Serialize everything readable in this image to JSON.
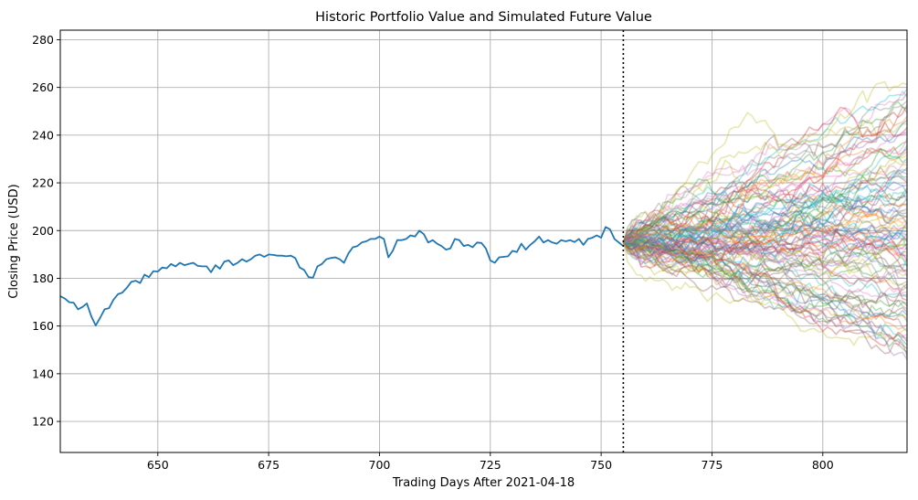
{
  "chart_data": {
    "type": "line",
    "title": "Historic Portfolio Value and Simulated Future Value",
    "xlabel": "Trading Days After 2021-04-18",
    "ylabel": "Closing Price (USD)",
    "xlim": [
      628,
      819
    ],
    "ylim": [
      107,
      284
    ],
    "xticks": [
      650,
      675,
      700,
      725,
      750,
      775,
      800
    ],
    "yticks": [
      120,
      140,
      160,
      180,
      200,
      220,
      240,
      260,
      280
    ],
    "grid": true,
    "divider_x": 755,
    "historic": {
      "color": "#1f77b4",
      "x_start": 628,
      "values": [
        172.5,
        171.5,
        170.0,
        169.8,
        167.0,
        168.0,
        169.5,
        164.0,
        160.2,
        163.5,
        167.0,
        167.5,
        171.0,
        173.3,
        174.0,
        176.0,
        178.5,
        179.0,
        178.0,
        181.5,
        180.5,
        183.0,
        182.8,
        184.5,
        184.2,
        186.0,
        185.0,
        186.5,
        185.5,
        186.0,
        186.5,
        185.2,
        185.0,
        185.0,
        182.5,
        185.5,
        184.0,
        187.0,
        187.5,
        185.5,
        186.5,
        188.0,
        187.0,
        188.0,
        189.5,
        190.0,
        189.0,
        190.0,
        189.8,
        189.5,
        189.5,
        189.2,
        189.5,
        188.5,
        184.5,
        183.5,
        180.5,
        180.2,
        185.0,
        186.0,
        188.0,
        188.5,
        188.8,
        188.0,
        186.5,
        190.5,
        193.0,
        193.5,
        195.0,
        195.5,
        196.5,
        196.5,
        197.5,
        196.5,
        188.8,
        191.5,
        196.0,
        196.0,
        196.5,
        198.0,
        197.5,
        200.0,
        198.5,
        195.0,
        196.0,
        194.5,
        193.5,
        192.0,
        192.5,
        196.5,
        196.0,
        193.5,
        194.0,
        193.0,
        195.0,
        194.8,
        192.5,
        187.5,
        186.5,
        188.8,
        189.0,
        189.2,
        191.5,
        191.0,
        194.5,
        192.0,
        194.0,
        195.5,
        197.5,
        195.0,
        196.0,
        195.0,
        194.5,
        196.0,
        195.5,
        196.0,
        195.2,
        196.5,
        194.0,
        196.5,
        197.0,
        198.0,
        197.0,
        201.5,
        200.5,
        196.5,
        195.0,
        193.5
      ]
    },
    "simulations": {
      "count": 100,
      "x_start": 755,
      "x_end": 819,
      "start_value": 195.0,
      "center_value": 196.0,
      "final_range": [
        141,
        262
      ],
      "opacity": 0.35,
      "palette": [
        "#1f77b4",
        "#ff7f0e",
        "#2ca02c",
        "#d62728",
        "#9467bd",
        "#8c564b",
        "#e377c2",
        "#7f7f7f",
        "#bcbd22",
        "#17becf"
      ]
    }
  }
}
